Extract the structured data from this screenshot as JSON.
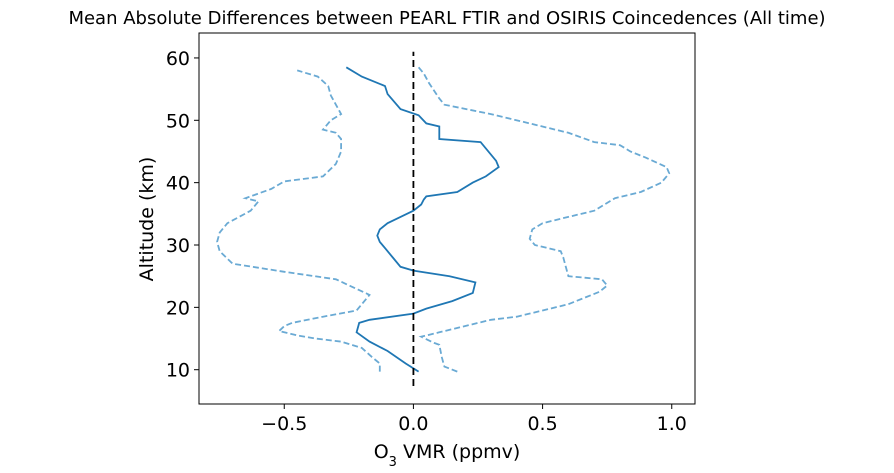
{
  "chart_data": {
    "type": "line",
    "title": "Mean Absolute Differences between PEARL FTIR and OSIRIS Coincedences (All time)",
    "xlabel": "O3 VMR (ppmv)",
    "xlabel_parts": {
      "base": "O",
      "sub": "3",
      "rest": " VMR (ppmv)"
    },
    "ylabel": "Altitude (km)",
    "xlim": [
      -0.83,
      1.09
    ],
    "ylim": [
      4.5,
      64
    ],
    "xticks": [
      -0.5,
      0.0,
      0.5,
      1.0
    ],
    "xtick_labels": [
      "−0.5",
      "0.0",
      "0.5",
      "1.0"
    ],
    "yticks": [
      10,
      20,
      30,
      40,
      50,
      60
    ],
    "ytick_labels": [
      "10",
      "20",
      "30",
      "40",
      "50",
      "60"
    ],
    "grid": false,
    "colors": {
      "mean": "#1f77b4",
      "bound": "#6aaad4",
      "zero": "#000000"
    },
    "zero_line": {
      "x": 0,
      "y": [
        0,
        61
      ]
    },
    "series": [
      {
        "style": "solid",
        "points": [
          [
            0.02,
            9.7
          ],
          [
            -0.03,
            11
          ],
          [
            -0.1,
            13
          ],
          [
            -0.17,
            14.5
          ],
          [
            -0.22,
            16
          ],
          [
            -0.21,
            17.5
          ],
          [
            -0.17,
            18
          ],
          [
            0.0,
            19
          ],
          [
            0.05,
            19.8
          ],
          [
            0.15,
            21
          ],
          [
            0.23,
            22.3
          ],
          [
            0.24,
            24
          ],
          [
            0.14,
            25
          ],
          [
            0.0,
            25.9
          ],
          [
            -0.05,
            26.5
          ],
          [
            -0.08,
            28
          ],
          [
            -0.11,
            29.5
          ],
          [
            -0.13,
            30.5
          ],
          [
            -0.14,
            31.5
          ],
          [
            -0.13,
            32.5
          ],
          [
            -0.1,
            33.5
          ],
          [
            -0.05,
            34.5
          ],
          [
            0.0,
            35.5
          ],
          [
            0.03,
            36.5
          ],
          [
            0.04,
            37.3
          ],
          [
            0.05,
            37.8
          ],
          [
            0.17,
            38.5
          ],
          [
            0.23,
            40
          ],
          [
            0.28,
            41
          ],
          [
            0.33,
            42.5
          ],
          [
            0.32,
            43.5
          ],
          [
            0.26,
            46.5
          ],
          [
            0.1,
            47
          ],
          [
            0.1,
            49
          ],
          [
            0.05,
            49.5
          ],
          [
            0.02,
            50.8
          ],
          [
            -0.05,
            51.8
          ],
          [
            -0.1,
            54.2
          ],
          [
            -0.11,
            55.5
          ],
          [
            -0.2,
            57
          ],
          [
            -0.26,
            58.5
          ]
        ]
      },
      {
        "style": "dashed",
        "points": [
          [
            -0.13,
            9.7
          ],
          [
            -0.13,
            11
          ],
          [
            -0.16,
            12
          ],
          [
            -0.2,
            13.5
          ],
          [
            -0.28,
            14.5
          ],
          [
            -0.38,
            15
          ],
          [
            -0.45,
            15.5
          ],
          [
            -0.52,
            16.2
          ],
          [
            -0.5,
            17
          ],
          [
            -0.47,
            17.5
          ],
          [
            -0.35,
            18.5
          ],
          [
            -0.22,
            19.5
          ],
          [
            -0.17,
            22
          ],
          [
            -0.3,
            24.5
          ],
          [
            -0.5,
            25.7
          ],
          [
            -0.7,
            27
          ],
          [
            -0.75,
            29
          ],
          [
            -0.76,
            30.5
          ],
          [
            -0.75,
            32
          ],
          [
            -0.72,
            33.5
          ],
          [
            -0.63,
            35.5
          ],
          [
            -0.6,
            37
          ],
          [
            -0.65,
            37.5
          ],
          [
            -0.55,
            39
          ],
          [
            -0.5,
            40.2
          ],
          [
            -0.35,
            41
          ],
          [
            -0.3,
            43
          ],
          [
            -0.28,
            45
          ],
          [
            -0.28,
            47
          ],
          [
            -0.3,
            48
          ],
          [
            -0.35,
            48.5
          ],
          [
            -0.32,
            50
          ],
          [
            -0.28,
            51
          ],
          [
            -0.3,
            52.5
          ],
          [
            -0.32,
            54
          ],
          [
            -0.33,
            55.5
          ],
          [
            -0.37,
            57
          ],
          [
            -0.45,
            58
          ]
        ]
      },
      {
        "style": "dashed",
        "points": [
          [
            0.17,
            9.7
          ],
          [
            0.12,
            10.5
          ],
          [
            0.11,
            12
          ],
          [
            0.1,
            14
          ],
          [
            0.08,
            14.3
          ],
          [
            0.03,
            15.3
          ],
          [
            0.1,
            16
          ],
          [
            0.15,
            16.5
          ],
          [
            0.3,
            18
          ],
          [
            0.4,
            18.5
          ],
          [
            0.5,
            19.5
          ],
          [
            0.6,
            20.5
          ],
          [
            0.72,
            22.5
          ],
          [
            0.75,
            23.5
          ],
          [
            0.73,
            24.5
          ],
          [
            0.6,
            25
          ],
          [
            0.59,
            26.5
          ],
          [
            0.58,
            28
          ],
          [
            0.57,
            29
          ],
          [
            0.47,
            30
          ],
          [
            0.45,
            31
          ],
          [
            0.46,
            32.5
          ],
          [
            0.5,
            33.5
          ],
          [
            0.6,
            34.5
          ],
          [
            0.7,
            35.5
          ],
          [
            0.72,
            36
          ],
          [
            0.78,
            37.5
          ],
          [
            0.83,
            38
          ],
          [
            0.88,
            38.5
          ],
          [
            0.96,
            40
          ],
          [
            0.99,
            41.5
          ],
          [
            0.98,
            42.5
          ],
          [
            0.9,
            44
          ],
          [
            0.84,
            45
          ],
          [
            0.8,
            46
          ],
          [
            0.7,
            46.5
          ],
          [
            0.6,
            48
          ],
          [
            0.45,
            49.5
          ],
          [
            0.3,
            51
          ],
          [
            0.12,
            52.5
          ],
          [
            0.1,
            53.5
          ],
          [
            0.06,
            56
          ],
          [
            0.04,
            57.5
          ],
          [
            0.02,
            58.5
          ]
        ]
      }
    ]
  }
}
